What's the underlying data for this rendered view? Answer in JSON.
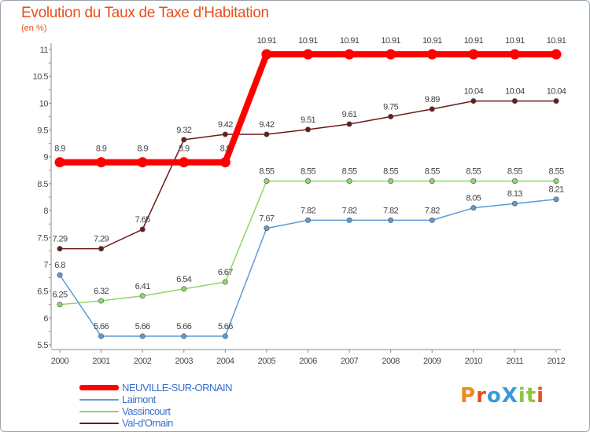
{
  "header": {
    "title": "Evolution du Taux de Taxe d'Habitation",
    "subtitle": "(en %)"
  },
  "logo": {
    "text": "ProXiti",
    "colors": [
      "#f08a1c",
      "#e84e1b",
      "#3a9ad9",
      "#3a9ad9",
      "#8cc63f",
      "#8cc63f",
      "#e84e1b"
    ]
  },
  "chart_data": {
    "type": "line",
    "title": "Evolution du Taux de Taxe d'Habitation",
    "ylabel": "(en %)",
    "xlabel": "",
    "ylim": [
      5.5,
      11
    ],
    "yticks": [
      5.5,
      6,
      6.5,
      7,
      7.5,
      8,
      8.5,
      9,
      9.5,
      10,
      10.5,
      11
    ],
    "ytick_labels": [
      "5.5",
      "6",
      "6.5",
      "7",
      "7.5",
      "8",
      "8.5",
      "9",
      "9.5",
      "10",
      "10.5",
      "11"
    ],
    "categories": [
      "2000",
      "2001",
      "2002",
      "2003",
      "2004",
      "2005",
      "2006",
      "2007",
      "2008",
      "2009",
      "2010",
      "2011",
      "2012"
    ],
    "grid": false,
    "legend_position": "bottom-left",
    "series": [
      {
        "name": "Val-d'Ornain",
        "color": "#6b1a1a",
        "values": [
          7.29,
          7.29,
          7.65,
          9.32,
          9.42,
          9.42,
          9.51,
          9.61,
          9.75,
          9.89,
          10.04,
          10.04,
          10.04
        ],
        "labels": [
          "7.29",
          "7.29",
          "7.65",
          "9.32",
          "9.42",
          "9.42",
          "9.51",
          "9.61",
          "9.75",
          "9.89",
          "10.04",
          "10.04",
          "10.04"
        ]
      },
      {
        "name": "Vassincourt",
        "color": "#8fd66a",
        "values": [
          6.25,
          6.32,
          6.41,
          6.54,
          6.67,
          8.55,
          8.55,
          8.55,
          8.55,
          8.55,
          8.55,
          8.55,
          8.55
        ],
        "labels": [
          "6.25",
          "6.32",
          "6.41",
          "6.54",
          "6.67",
          "8.55",
          "8.55",
          "8.55",
          "8.55",
          "8.55",
          "8.55",
          "8.55",
          "8.55"
        ]
      },
      {
        "name": "Laimont",
        "color": "#5b9bd5",
        "values": [
          6.8,
          5.66,
          5.66,
          5.66,
          5.66,
          7.67,
          7.82,
          7.82,
          7.82,
          7.82,
          8.05,
          8.13,
          8.21
        ],
        "labels": [
          "6.8",
          "5.66",
          "5.66",
          "5.66",
          "5.66",
          "7.67",
          "7.82",
          "7.82",
          "7.82",
          "7.82",
          "8.05",
          "8.13",
          "8.21"
        ]
      },
      {
        "name": "NEUVILLE-SUR-ORNAIN",
        "color": "#ff0000",
        "values": [
          8.9,
          8.9,
          8.9,
          8.9,
          8.9,
          10.91,
          10.91,
          10.91,
          10.91,
          10.91,
          10.91,
          10.91,
          10.91
        ],
        "labels": [
          "8.9",
          "8.9",
          "8.9",
          "8.9",
          "8.9",
          "10.91",
          "10.91",
          "10.91",
          "10.91",
          "10.91",
          "10.91",
          "10.91",
          "10.91"
        ]
      }
    ],
    "legend": [
      {
        "name": "NEUVILLE-SUR-ORNAIN",
        "color": "#ff0000"
      },
      {
        "name": "Laimont",
        "color": "#5b9bd5"
      },
      {
        "name": "Vassincourt",
        "color": "#8fd66a"
      },
      {
        "name": "Val-d'Ornain",
        "color": "#6b1a1a"
      }
    ]
  }
}
